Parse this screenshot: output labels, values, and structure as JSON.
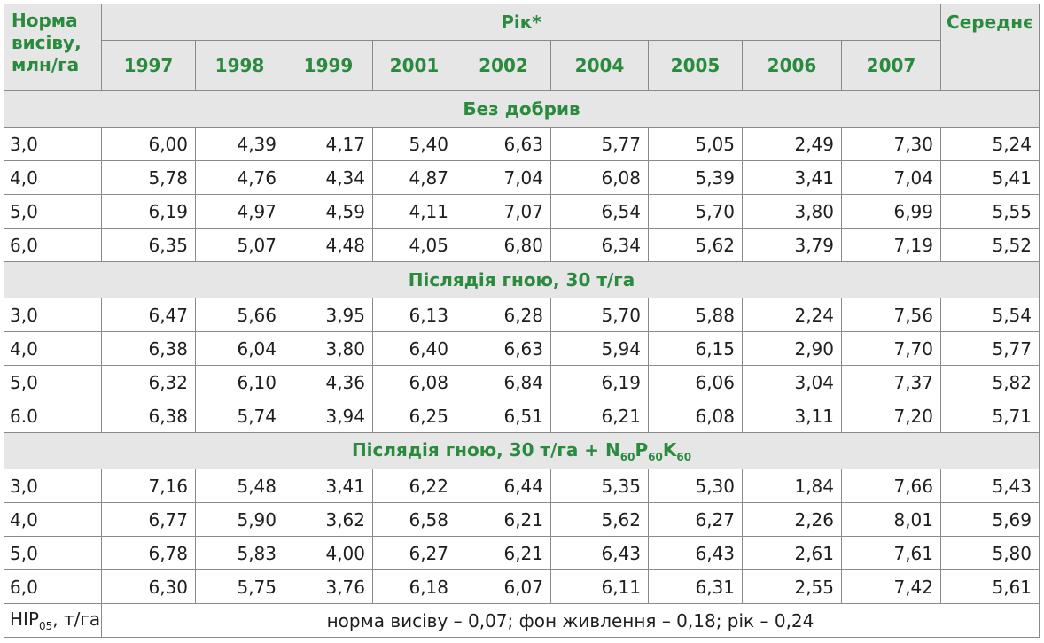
{
  "header": {
    "norm_label": "Норма висіву, млн/га",
    "year_group_label": "Рік*",
    "average_label": "Середнє",
    "years": [
      "1997",
      "1998",
      "1999",
      "2001",
      "2002",
      "2004",
      "2005",
      "2006",
      "2007"
    ]
  },
  "sections": [
    {
      "title": "Без добрив",
      "rows": [
        {
          "norm": "3,0",
          "values": [
            "6,00",
            "4,39",
            "4,17",
            "5,40",
            "6,63",
            "5,77",
            "5,05",
            "2,49",
            "7,30"
          ],
          "average": "5,24"
        },
        {
          "norm": "4,0",
          "values": [
            "5,78",
            "4,76",
            "4,34",
            "4,87",
            "7,04",
            "6,08",
            "5,39",
            "3,41",
            "7,04"
          ],
          "average": "5,41"
        },
        {
          "norm": "5,0",
          "values": [
            "6,19",
            "4,97",
            "4,59",
            "4,11",
            "7,07",
            "6,54",
            "5,70",
            "3,80",
            "6,99"
          ],
          "average": "5,55"
        },
        {
          "norm": "6,0",
          "values": [
            "6,35",
            "5,07",
            "4,48",
            "4,05",
            "6,80",
            "6,34",
            "5,62",
            "3,79",
            "7,19"
          ],
          "average": "5,52"
        }
      ]
    },
    {
      "title": "Післядія гною, 30 т/га",
      "rows": [
        {
          "norm": "3,0",
          "values": [
            "6,47",
            "5,66",
            "3,95",
            "6,13",
            "6,28",
            "5,70",
            "5,88",
            "2,24",
            "7,56"
          ],
          "average": "5,54"
        },
        {
          "norm": "4,0",
          "values": [
            "6,38",
            "6,04",
            "3,80",
            "6,40",
            "6,63",
            "5,94",
            "6,15",
            "2,90",
            "7,70"
          ],
          "average": "5,77"
        },
        {
          "norm": "5,0",
          "values": [
            "6,32",
            "6,10",
            "4,36",
            "6,08",
            "6,84",
            "6,19",
            "6,06",
            "3,04",
            "7,37"
          ],
          "average": "5,82"
        },
        {
          "norm": "6.0",
          "values": [
            "6,38",
            "5,74",
            "3,94",
            "6,25",
            "6,51",
            "6,21",
            "6,08",
            "3,11",
            "7,20"
          ],
          "average": "5,71"
        }
      ]
    },
    {
      "title_prefix": "Післядія гною, 30 т/га + ",
      "title_parts": [
        {
          "el": "N",
          "sub": "60"
        },
        {
          "el": "P",
          "sub": "60"
        },
        {
          "el": "K",
          "sub": "60"
        }
      ],
      "rows": [
        {
          "norm": "3,0",
          "values": [
            "7,16",
            "5,48",
            "3,41",
            "6,22",
            "6,44",
            "5,35",
            "5,30",
            "1,84",
            "7,66"
          ],
          "average": "5,43"
        },
        {
          "norm": "4,0",
          "values": [
            "6,77",
            "5,90",
            "3,62",
            "6,58",
            "6,21",
            "5,62",
            "6,27",
            "2,26",
            "8,01"
          ],
          "average": "5,69"
        },
        {
          "norm": "5,0",
          "values": [
            "6,78",
            "5,83",
            "4,00",
            "6,27",
            "6,21",
            "6,43",
            "6,43",
            "2,61",
            "7,61"
          ],
          "average": "5,80"
        },
        {
          "norm": "6,0",
          "values": [
            "6,30",
            "5,75",
            "3,76",
            "6,18",
            "6,07",
            "6,11",
            "6,31",
            "2,55",
            "7,42"
          ],
          "average": "5,61"
        }
      ]
    }
  ],
  "lsd": {
    "label_main": "НІР",
    "label_sub": "05",
    "label_unit": ", т/га",
    "value": "норма висіву – 0,07; фон живлення – 0,18; рік – 0,24"
  }
}
